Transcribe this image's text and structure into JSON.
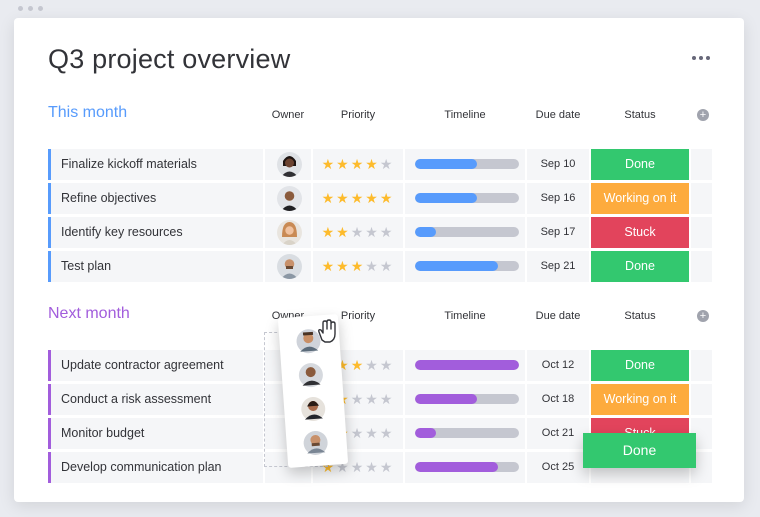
{
  "title": "Q3 project overview",
  "columns": {
    "owner": "Owner",
    "priority": "Priority",
    "timeline": "Timeline",
    "due": "Due date",
    "status": "Status"
  },
  "colors": {
    "this_month": "#579bfc",
    "next_month": "#a25ddc",
    "done": "#33c86f",
    "working": "#fdab3d",
    "stuck": "#e2445c",
    "star": "#fdbb2c"
  },
  "groups": [
    {
      "title": "This month",
      "rows": [
        {
          "name": "Finalize kickoff materials",
          "owner": "avatar-1",
          "priority": 4,
          "timeline": 0.6,
          "due": "Sep 10",
          "status": "Done",
          "status_color": "#33c86f"
        },
        {
          "name": "Refine objectives",
          "owner": "avatar-2",
          "priority": 5,
          "timeline": 0.6,
          "due": "Sep 16",
          "status": "Working on it",
          "status_color": "#fdab3d"
        },
        {
          "name": "Identify key resources",
          "owner": "avatar-3",
          "priority": 2,
          "timeline": 0.2,
          "due": "Sep 17",
          "status": "Stuck",
          "status_color": "#e2445c"
        },
        {
          "name": "Test plan",
          "owner": "avatar-4",
          "priority": 3,
          "timeline": 0.8,
          "due": "Sep 21",
          "status": "Done",
          "status_color": "#33c86f"
        }
      ]
    },
    {
      "title": "Next month",
      "rows": [
        {
          "name": "Update contractor agreement",
          "priority": 3,
          "timeline": 1.0,
          "due": "Oct 12",
          "status": "Done",
          "status_color": "#33c86f"
        },
        {
          "name": "Conduct a risk assessment",
          "priority": 2,
          "timeline": 0.6,
          "due": "Oct 18",
          "status": "Working on it",
          "status_color": "#fdab3d"
        },
        {
          "name": "Monitor budget",
          "priority": 2,
          "timeline": 0.2,
          "due": "Oct 21",
          "status": "Stuck",
          "status_color": "#e2445c"
        },
        {
          "name": "Develop communication plan",
          "priority": 1,
          "timeline": 0.8,
          "due": "Oct 25",
          "status": "",
          "status_color": "#f5f6f8"
        }
      ]
    }
  ],
  "dragging_status": "Done"
}
